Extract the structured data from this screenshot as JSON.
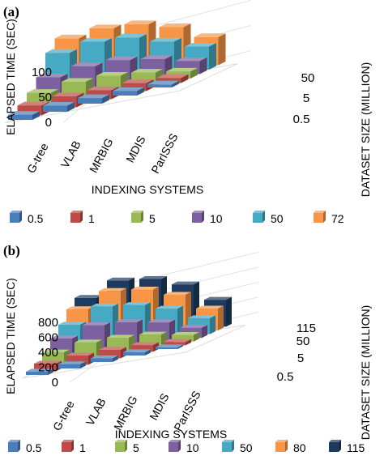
{
  "colors": {
    "0.5": "#4a7ebb",
    "1": "#be4b48",
    "5": "#98b954",
    "10": "#7d60a0",
    "50": "#46aac5",
    "72": "#f79646",
    "80": "#f79646",
    "115": "#1f3a5f"
  },
  "chart_data": [
    {
      "panel": "(a)",
      "type": "bar",
      "subtype": "3d-bar",
      "ylabel": "ELAPSED TIME (SEC)",
      "xlabel": "INDEXING SYSTEMS",
      "zlabel": "DATASET SIZE (MILLION)",
      "yticks": [
        "0",
        "50",
        "100"
      ],
      "ylim": [
        0,
        150
      ],
      "categories": [
        "G-tree",
        "VLAB",
        "MRBIG",
        "MDIS",
        "ParISSS"
      ],
      "depth_ticks": [
        "0.5",
        "5",
        "50"
      ],
      "series": [
        {
          "name": "0.5",
          "values": [
            10,
            12,
            11,
            9,
            6
          ]
        },
        {
          "name": "1",
          "values": [
            20,
            22,
            18,
            16,
            10
          ]
        },
        {
          "name": "5",
          "values": [
            36,
            42,
            38,
            28,
            14
          ]
        },
        {
          "name": "10",
          "values": [
            58,
            64,
            60,
            46,
            26
          ]
        },
        {
          "name": "50",
          "values": [
            98,
            104,
            96,
            72,
            46
          ]
        },
        {
          "name": "72",
          "values": [
            118,
            122,
            114,
            92,
            56
          ]
        }
      ],
      "legend": [
        "0.5",
        "1",
        "5",
        "10",
        "50",
        "72"
      ],
      "legend_position": "bottom"
    },
    {
      "panel": "(b)",
      "type": "bar",
      "subtype": "3d-bar",
      "ylabel": "ELAPSED TIME (SEC)",
      "xlabel": "INDEXING SYSTEMS",
      "zlabel": "DATASET SIZE (MILLION)",
      "yticks": [
        "0",
        "200",
        "400",
        "600",
        "800"
      ],
      "ylim": [
        0,
        900
      ],
      "categories": [
        "G-tree",
        "VLAB",
        "MRBIG",
        "MDIS",
        "ParISSS"
      ],
      "depth_ticks": [
        "0.5",
        "5",
        "50",
        "115"
      ],
      "series": [
        {
          "name": "0.5",
          "values": [
            40,
            50,
            45,
            40,
            20
          ]
        },
        {
          "name": "1",
          "values": [
            90,
            110,
            100,
            80,
            40
          ]
        },
        {
          "name": "5",
          "values": [
            180,
            220,
            200,
            160,
            80
          ]
        },
        {
          "name": "10",
          "values": [
            300,
            380,
            340,
            260,
            120
          ]
        },
        {
          "name": "50",
          "values": [
            420,
            560,
            500,
            380,
            190
          ]
        },
        {
          "name": "80",
          "values": [
            560,
            700,
            640,
            500,
            260
          ]
        },
        {
          "name": "115",
          "values": [
            650,
            780,
            720,
            580,
            320
          ]
        }
      ],
      "legend": [
        "0.5",
        "1",
        "5",
        "10",
        "50",
        "80",
        "115"
      ],
      "legend_position": "bottom"
    }
  ]
}
